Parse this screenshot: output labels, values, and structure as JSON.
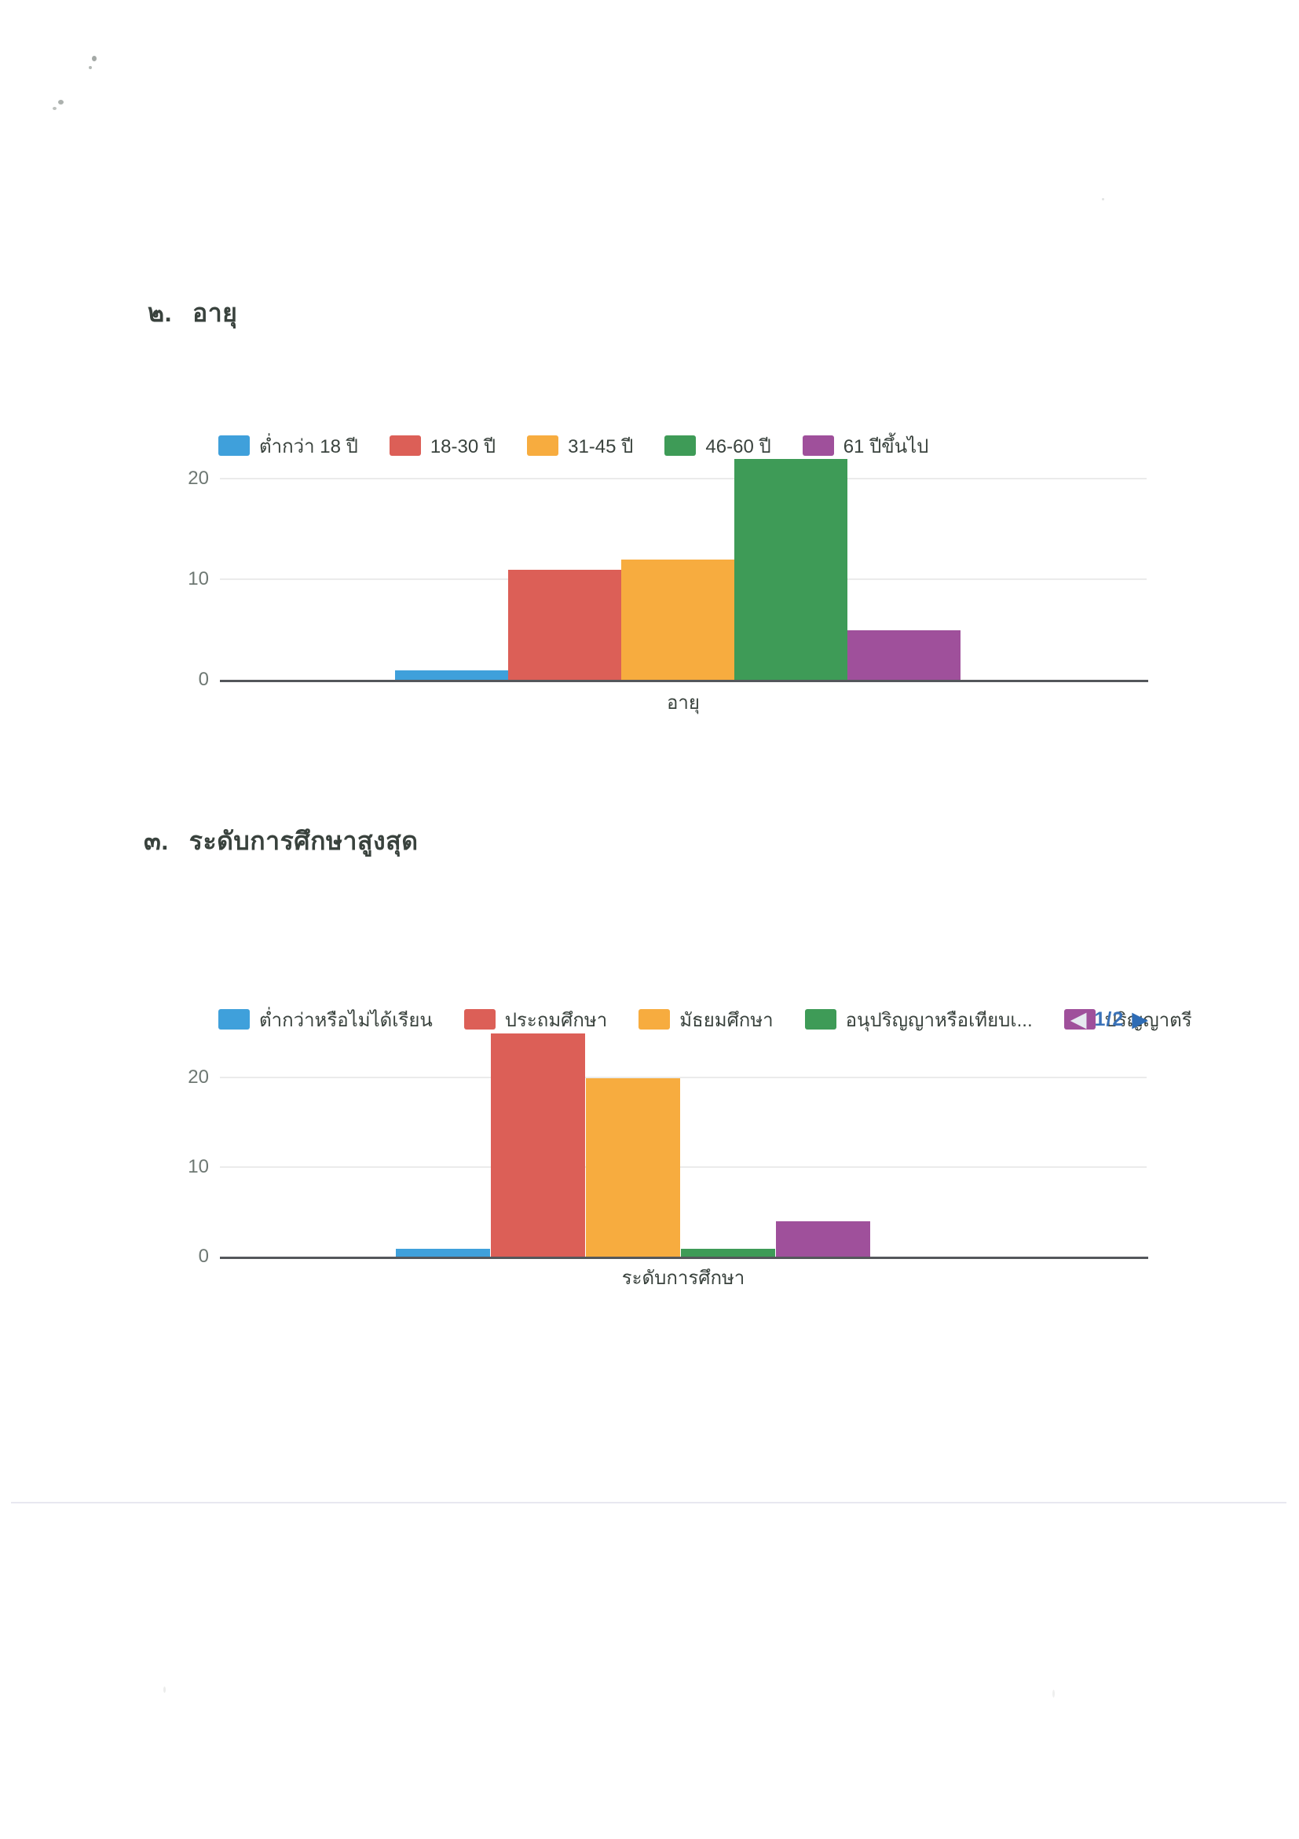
{
  "colors": {
    "series_blue": "#3FA0DB",
    "series_red": "#DC5F57",
    "series_orange": "#F7AC3F",
    "series_green": "#3E9B57",
    "series_purple": "#9F509B",
    "axis_baseline": "#54575B",
    "gridline": "#EBEBEB",
    "tick_text": "#6E7873",
    "heading_text": "#39423D",
    "pagination_active": "#2E6CB5",
    "pagination_disabled": "#E6E9F0"
  },
  "pagination_icons": {
    "prev_glyph": "◀",
    "next_glyph": "▶"
  },
  "chart_data": [
    {
      "type": "bar",
      "section_number": "๒.",
      "title": "อายุ",
      "categories": [
        "ต่ำกว่า 18 ปี",
        "18-30 ปี",
        "31-45 ปี",
        "46-60 ปี",
        "61 ปีขึ้นไป"
      ],
      "values": [
        1,
        11,
        12,
        22,
        5
      ],
      "colors": [
        "#3FA0DB",
        "#DC5F57",
        "#F7AC3F",
        "#3E9B57",
        "#9F509B"
      ],
      "xlabel": "อายุ",
      "ylabel": "",
      "ylim": [
        0,
        22
      ],
      "yticks": [
        0,
        10,
        20
      ],
      "grid": true,
      "legend_position": "top"
    },
    {
      "type": "bar",
      "section_number": "๓.",
      "title": "ระดับการศึกษาสูงสุด",
      "categories": [
        "ต่ำกว่าหรือไม่ได้เรียน",
        "ประถมศึกษา",
        "มัธยมศึกษา",
        "อนุปริญญาหรือเทียบเ...",
        "ปริญญาตรี"
      ],
      "values": [
        1,
        25,
        20,
        1,
        4
      ],
      "colors": [
        "#3FA0DB",
        "#DC5F57",
        "#F7AC3F",
        "#3E9B57",
        "#9F509B"
      ],
      "xlabel": "ระดับการศึกษา",
      "ylabel": "",
      "ylim": [
        0,
        25
      ],
      "yticks": [
        0,
        10,
        20
      ],
      "grid": true,
      "legend_position": "top",
      "pagination": {
        "label": "1/2",
        "prev_enabled": false,
        "next_enabled": true
      }
    }
  ]
}
